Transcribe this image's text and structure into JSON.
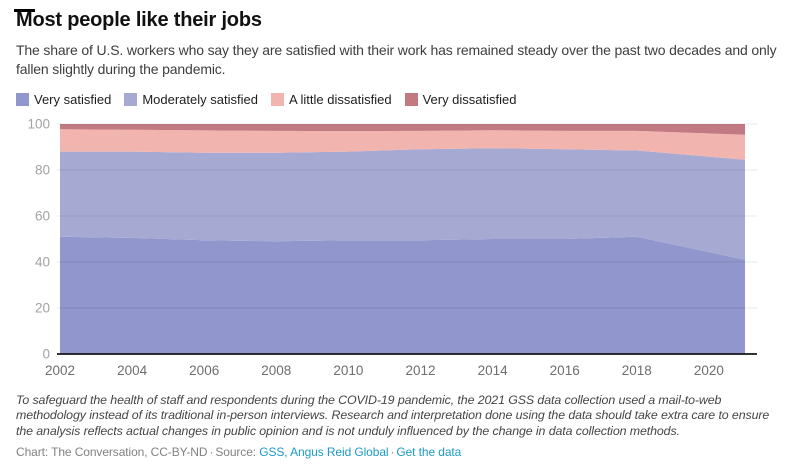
{
  "header": {
    "title": "Most people like their jobs",
    "subtitle": "The share of U.S. workers who say they are satisfied with their work has remained steady over the past two decades and only fallen slightly during the pandemic."
  },
  "chart_data": {
    "type": "area",
    "stacked": true,
    "title": "Most people like their jobs",
    "xlabel": "",
    "ylabel": "",
    "ylim": [
      0,
      100
    ],
    "grid": true,
    "legend_position": "top",
    "x": [
      2002,
      2004,
      2006,
      2008,
      2010,
      2012,
      2014,
      2016,
      2018,
      2021
    ],
    "xticks": [
      2002,
      2004,
      2006,
      2008,
      2010,
      2012,
      2014,
      2016,
      2018,
      2020
    ],
    "yticks": [
      0,
      20,
      40,
      60,
      80,
      100
    ],
    "series": [
      {
        "name": "Very satisfied",
        "color": "#9197cd",
        "values": [
          51,
          50.5,
          49.5,
          49,
          49.5,
          49.5,
          50,
          50,
          51,
          41
        ]
      },
      {
        "name": "Moderately satisfied",
        "color": "#a6a9d2",
        "values": [
          37,
          37.5,
          38,
          38.5,
          38.5,
          39.5,
          39.5,
          39,
          37.5,
          43.5
        ]
      },
      {
        "name": "A little dissatisfied",
        "color": "#f1b4af",
        "values": [
          9.7,
          9.5,
          9.7,
          9.5,
          8.9,
          8,
          7.8,
          8,
          8.5,
          10.8
        ]
      },
      {
        "name": "Very dissatisfied",
        "color": "#c27a82",
        "values": [
          2.3,
          2.5,
          2.8,
          3,
          3.1,
          3,
          2.7,
          3,
          3,
          4.7
        ]
      }
    ],
    "axis_colors": {
      "y_tick_label": "#a3a3a3",
      "x_tick_label": "#6e6e6e",
      "axis_line": "#161616"
    }
  },
  "footer": {
    "note": "To safeguard the health of staff and respondents during the COVID-19 pandemic, the 2021 GSS data collection used a mail-to-web methodology instead of its traditional in-person interviews. Research and interpretation done using the data should take extra care to ensure the analysis reflects actual changes in public opinion and is not unduly influenced by the change in data collection methods.",
    "credit_prefix": "Chart: The Conversation, CC-BY-ND",
    "separator": "·",
    "source_label": "Source:",
    "source_link": "GSS, Angus Reid Global",
    "get_data_link": "Get the data",
    "link_color": "#1d9bc7"
  }
}
